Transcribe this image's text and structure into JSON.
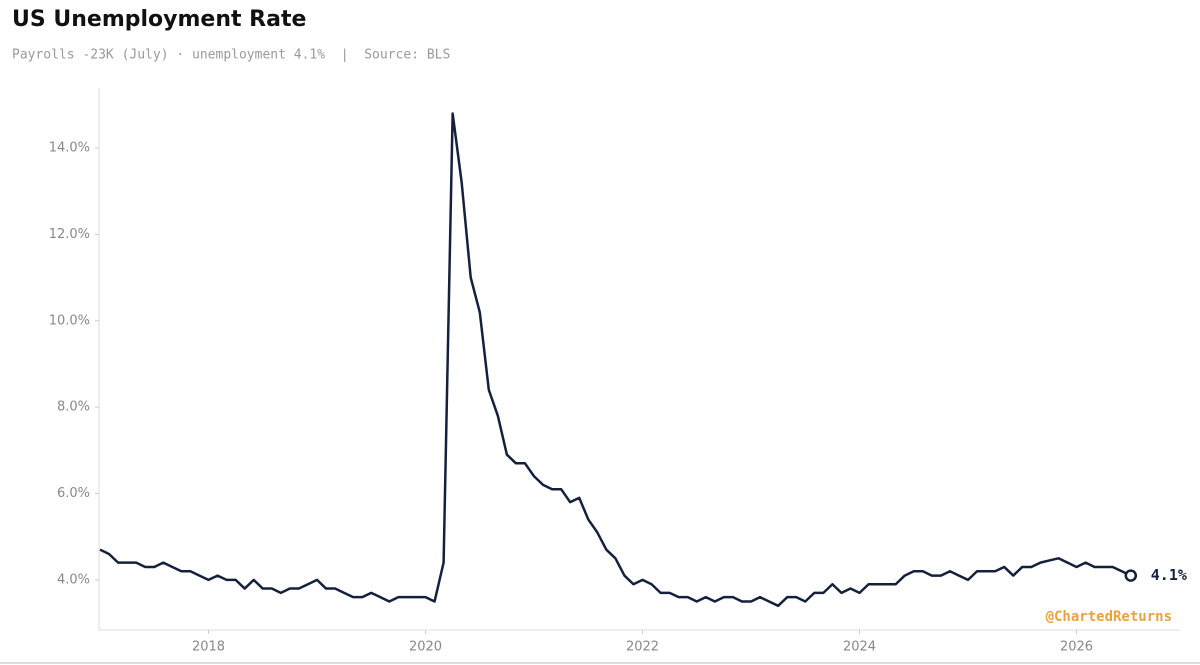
{
  "chart_data": {
    "type": "line",
    "title": "US Unemployment Rate",
    "subtitle": "Payrolls -23K (July) · unemployment 4.1%  |  Source: BLS",
    "watermark": "@ChartedReturns",
    "end_label": "4.1%",
    "color": "#14213d",
    "x": [
      "2017-01",
      "2017-02",
      "2017-03",
      "2017-04",
      "2017-05",
      "2017-06",
      "2017-07",
      "2017-08",
      "2017-09",
      "2017-10",
      "2017-11",
      "2017-12",
      "2018-01",
      "2018-02",
      "2018-03",
      "2018-04",
      "2018-05",
      "2018-06",
      "2018-07",
      "2018-08",
      "2018-09",
      "2018-10",
      "2018-11",
      "2018-12",
      "2019-01",
      "2019-02",
      "2019-03",
      "2019-04",
      "2019-05",
      "2019-06",
      "2019-07",
      "2019-08",
      "2019-09",
      "2019-10",
      "2019-11",
      "2019-12",
      "2020-01",
      "2020-02",
      "2020-03",
      "2020-04",
      "2020-05",
      "2020-06",
      "2020-07",
      "2020-08",
      "2020-09",
      "2020-10",
      "2020-11",
      "2020-12",
      "2021-01",
      "2021-02",
      "2021-03",
      "2021-04",
      "2021-05",
      "2021-06",
      "2021-07",
      "2021-08",
      "2021-09",
      "2021-10",
      "2021-11",
      "2021-12",
      "2022-01",
      "2022-02",
      "2022-03",
      "2022-04",
      "2022-05",
      "2022-06",
      "2022-07",
      "2022-08",
      "2022-09",
      "2022-10",
      "2022-11",
      "2022-12",
      "2023-01",
      "2023-02",
      "2023-03",
      "2023-04",
      "2023-05",
      "2023-06",
      "2023-07",
      "2023-08",
      "2023-09",
      "2023-10",
      "2023-11",
      "2023-12",
      "2024-01",
      "2024-02",
      "2024-03",
      "2024-04",
      "2024-05",
      "2024-06",
      "2024-07",
      "2024-08",
      "2024-09",
      "2024-10",
      "2024-11",
      "2024-12",
      "2025-01",
      "2025-02",
      "2025-03",
      "2025-04",
      "2025-05",
      "2025-06",
      "2025-07",
      "2025-08",
      "2025-09",
      "2025-10",
      "2025-11",
      "2025-12",
      "2026-01",
      "2026-02",
      "2026-03",
      "2026-04",
      "2026-05",
      "2026-06",
      "2026-07"
    ],
    "values": [
      4.7,
      4.6,
      4.4,
      4.4,
      4.4,
      4.3,
      4.3,
      4.4,
      4.3,
      4.2,
      4.2,
      4.1,
      4.0,
      4.1,
      4.0,
      4.0,
      3.8,
      4.0,
      3.8,
      3.8,
      3.7,
      3.8,
      3.8,
      3.9,
      4.0,
      3.8,
      3.8,
      3.7,
      3.6,
      3.6,
      3.7,
      3.6,
      3.5,
      3.6,
      3.6,
      3.6,
      3.6,
      3.5,
      4.4,
      14.8,
      13.2,
      11.0,
      10.2,
      8.4,
      7.8,
      6.9,
      6.7,
      6.7,
      6.4,
      6.2,
      6.1,
      6.1,
      5.8,
      5.9,
      5.4,
      5.1,
      4.7,
      4.5,
      4.1,
      3.9,
      4.0,
      3.9,
      3.7,
      3.7,
      3.6,
      3.6,
      3.5,
      3.6,
      3.5,
      3.6,
      3.6,
      3.5,
      3.5,
      3.6,
      3.5,
      3.4,
      3.6,
      3.6,
      3.5,
      3.7,
      3.7,
      3.9,
      3.7,
      3.8,
      3.7,
      3.9,
      3.9,
      3.9,
      3.9,
      4.1,
      4.2,
      4.2,
      4.1,
      4.1,
      4.2,
      4.1,
      4.0,
      4.2,
      4.2,
      4.2,
      4.3,
      4.1,
      4.3,
      4.3,
      4.4,
      4.45,
      4.5,
      4.4,
      4.3,
      4.4,
      4.3,
      4.3,
      4.3,
      4.2,
      4.1
    ],
    "xlim": [
      "2017-01",
      "2026-12"
    ],
    "xticks": [
      {
        "value": "2018-01",
        "label": "2018"
      },
      {
        "value": "2020-01",
        "label": "2020"
      },
      {
        "value": "2022-01",
        "label": "2022"
      },
      {
        "value": "2024-01",
        "label": "2024"
      },
      {
        "value": "2026-01",
        "label": "2026"
      }
    ],
    "ylim": [
      2.84,
      15.39
    ],
    "yticks": [
      {
        "value": 4,
        "label": "4.0%"
      },
      {
        "value": 6,
        "label": "6.0%"
      },
      {
        "value": 8,
        "label": "8.0%"
      },
      {
        "value": 10,
        "label": "10.0%"
      },
      {
        "value": 12,
        "label": "12.0%"
      },
      {
        "value": 14,
        "label": "14.0%"
      }
    ],
    "grid": false
  }
}
